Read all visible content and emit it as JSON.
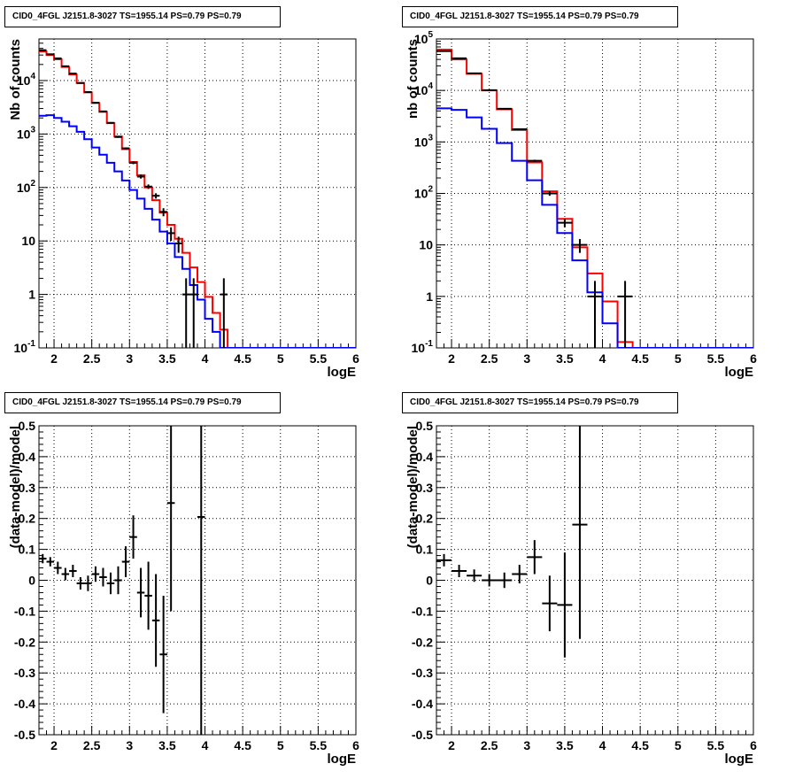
{
  "chart_data": [
    {
      "type": "line",
      "title": "CID0_4FGL J2151.8-3027 TS=1955.14 PS=0.79 PS=0.79",
      "xlabel": "logE",
      "ylabel": "Nb of counts",
      "xlim": [
        1.8,
        6
      ],
      "ylim": [
        0.1,
        60000
      ],
      "yscale": "log",
      "grid": true,
      "x_ticks": [
        "2",
        "2.5",
        "3",
        "3.5",
        "4",
        "4.5",
        "5",
        "5.5",
        "6"
      ],
      "y_ticks": [
        "10^{-1}",
        "1",
        "10",
        "10^{2}",
        "10^{3}",
        "10^{4}"
      ],
      "bin_width": 0.1,
      "bin_starts": [
        1.8,
        1.9,
        2.0,
        2.1,
        2.2,
        2.3,
        2.4,
        2.5,
        2.6,
        2.7,
        2.8,
        2.9,
        3.0,
        3.1,
        3.2,
        3.3,
        3.4,
        3.5,
        3.6,
        3.7,
        3.8,
        3.9,
        4.0,
        4.1,
        4.2,
        4.3,
        4.4,
        4.5,
        4.6,
        4.7,
        4.8,
        4.9,
        5.0,
        5.1,
        5.2,
        5.3,
        5.4,
        5.5,
        5.6,
        5.7,
        5.8,
        5.9
      ],
      "series": [
        {
          "color": "#ff0000",
          "values": [
            35000,
            30000,
            25000,
            18000,
            13000,
            9000,
            6000,
            3800,
            2600,
            1600,
            900,
            520,
            300,
            170,
            100,
            58,
            34,
            20,
            11,
            6,
            3.2,
            1.7,
            0.9,
            0.45,
            0.22,
            0.1,
            0.1,
            0.1,
            0.1,
            0.1,
            0.1,
            0.1,
            0.1,
            0.1,
            0.1,
            0.1,
            0.1,
            0.1,
            0.1,
            0.1,
            0.1,
            0.1
          ]
        },
        {
          "color": "#0000ff",
          "values": [
            2200,
            2250,
            2000,
            1700,
            1400,
            1100,
            800,
            560,
            410,
            290,
            200,
            135,
            90,
            62,
            40,
            25,
            15,
            9,
            5,
            3,
            1.5,
            0.8,
            0.35,
            0.2,
            0.1,
            0.1,
            0.1,
            0.1,
            0.1,
            0.1,
            0.1,
            0.1,
            0.1,
            0.1,
            0.1,
            0.1,
            0.1,
            0.1,
            0.1,
            0.1,
            0.1,
            0.1
          ]
        }
      ],
      "data_points": {
        "color": "#000000",
        "x": [
          1.85,
          1.95,
          2.05,
          2.15,
          2.25,
          2.35,
          2.45,
          2.55,
          2.65,
          2.75,
          2.85,
          2.95,
          3.05,
          3.15,
          3.25,
          3.35,
          3.45,
          3.55,
          3.65,
          3.75,
          3.85,
          4.25
        ],
        "y": [
          37000,
          31000,
          26000,
          18500,
          13500,
          9000,
          6100,
          3850,
          2650,
          1620,
          880,
          540,
          290,
          160,
          104,
          70,
          35,
          14,
          9,
          1,
          1,
          1
        ],
        "yerr": [
          200,
          180,
          160,
          140,
          120,
          95,
          80,
          65,
          52,
          40,
          30,
          23,
          17,
          13,
          10,
          8,
          6,
          4,
          3,
          1,
          1,
          1
        ]
      }
    },
    {
      "type": "line",
      "title": "CID0_4FGL J2151.8-3027 TS=1955.14 PS=0.79 PS=0.79",
      "xlabel": "logE",
      "ylabel": "nb of counts",
      "xlim": [
        1.8,
        6
      ],
      "ylim": [
        0.1,
        100000
      ],
      "yscale": "log",
      "grid": true,
      "x_ticks": [
        "2",
        "2.5",
        "3",
        "3.5",
        "4",
        "4.5",
        "5",
        "5.5",
        "6"
      ],
      "y_ticks": [
        "10^{-1}",
        "1",
        "10",
        "10^{2}",
        "10^{3}",
        "10^{4}",
        "10^{5}"
      ],
      "bin_width": 0.2,
      "bin_starts": [
        1.8,
        2.0,
        2.2,
        2.4,
        2.6,
        2.8,
        3.0,
        3.2,
        3.4,
        3.6,
        3.8,
        4.0,
        4.2,
        4.4,
        4.6,
        4.8,
        5.0,
        5.2,
        5.4,
        5.6,
        5.8
      ],
      "series": [
        {
          "color": "#ff0000",
          "values": [
            62000,
            40000,
            21000,
            10000,
            4300,
            1700,
            400,
            110,
            32,
            9,
            2.8,
            0.8,
            0.13,
            0.1,
            0.1,
            0.1,
            0.1,
            0.1,
            0.1,
            0.1,
            0.1
          ]
        },
        {
          "color": "#0000ff",
          "values": [
            4500,
            4200,
            3000,
            1800,
            950,
            430,
            180,
            60,
            17,
            5,
            1.2,
            0.3,
            0.1,
            0.1,
            0.1,
            0.1,
            0.1,
            0.1,
            0.1,
            0.1,
            0.1
          ]
        }
      ],
      "data_points": {
        "color": "#000000",
        "x": [
          1.9,
          2.1,
          2.3,
          2.5,
          2.7,
          2.9,
          3.1,
          3.3,
          3.5,
          3.7,
          3.9,
          4.3
        ],
        "y": [
          58000,
          42000,
          21500,
          10100,
          4400,
          1760,
          430,
          100,
          27,
          10,
          1,
          1
        ],
        "yerr": [
          240,
          205,
          147,
          100,
          66,
          42,
          21,
          10,
          5,
          3,
          1,
          1
        ]
      }
    },
    {
      "type": "scatter",
      "title": "CID0_4FGL J2151.8-3027 TS=1955.14 PS=0.79 PS=0.79",
      "xlabel": "logE",
      "ylabel": "(data-model)/model",
      "xlim": [
        1.8,
        6
      ],
      "ylim": [
        -0.5,
        0.5
      ],
      "grid": true,
      "x_ticks": [
        "2",
        "2.5",
        "3",
        "3.5",
        "4",
        "4.5",
        "5",
        "5.5",
        "6"
      ],
      "y_ticks": [
        "-0.5",
        "-0.4",
        "-0.3",
        "-0.2",
        "-0.1",
        "0",
        "0.1",
        "0.2",
        "0.3",
        "0.4",
        "0.5"
      ],
      "series": [
        {
          "color": "#000000",
          "x": [
            1.85,
            1.95,
            2.05,
            2.15,
            2.25,
            2.35,
            2.45,
            2.55,
            2.65,
            2.75,
            2.85,
            2.95,
            3.05,
            3.15,
            3.25,
            3.35,
            3.45,
            3.55,
            3.95
          ],
          "xerr": 0.05,
          "y": [
            0.07,
            0.06,
            0.04,
            0.02,
            0.03,
            -0.01,
            -0.01,
            0.02,
            0.01,
            -0.01,
            0.0,
            0.06,
            0.14,
            -0.04,
            -0.05,
            -0.13,
            -0.24,
            0.25,
            0.205
          ],
          "yerr": [
            0.015,
            0.015,
            0.02,
            0.02,
            0.02,
            0.02,
            0.025,
            0.025,
            0.03,
            0.035,
            0.045,
            0.05,
            0.07,
            0.08,
            0.11,
            0.15,
            0.19,
            0.35,
            0.75
          ]
        }
      ]
    },
    {
      "type": "scatter",
      "title": "CID0_4FGL J2151.8-3027 TS=1955.14 PS=0.79 PS=0.79",
      "xlabel": "logE",
      "ylabel": "(data-model)/model",
      "xlim": [
        1.8,
        6
      ],
      "ylim": [
        -0.5,
        0.5
      ],
      "grid": true,
      "x_ticks": [
        "2",
        "2.5",
        "3",
        "3.5",
        "4",
        "4.5",
        "5",
        "5.5",
        "6"
      ],
      "y_ticks": [
        "-0.5",
        "-0.4",
        "-0.3",
        "-0.2",
        "-0.1",
        "0",
        "0.1",
        "0.2",
        "0.3",
        "0.4",
        "0.5"
      ],
      "series": [
        {
          "color": "#000000",
          "x": [
            1.9,
            2.1,
            2.3,
            2.5,
            2.7,
            2.9,
            3.1,
            3.3,
            3.5,
            3.7
          ],
          "xerr": 0.1,
          "y": [
            0.065,
            0.03,
            0.015,
            0.0,
            0.0,
            0.02,
            0.075,
            -0.075,
            -0.08,
            0.18
          ],
          "yerr": [
            0.02,
            0.02,
            0.02,
            0.02,
            0.025,
            0.03,
            0.055,
            0.09,
            0.17,
            0.37
          ]
        }
      ]
    }
  ]
}
